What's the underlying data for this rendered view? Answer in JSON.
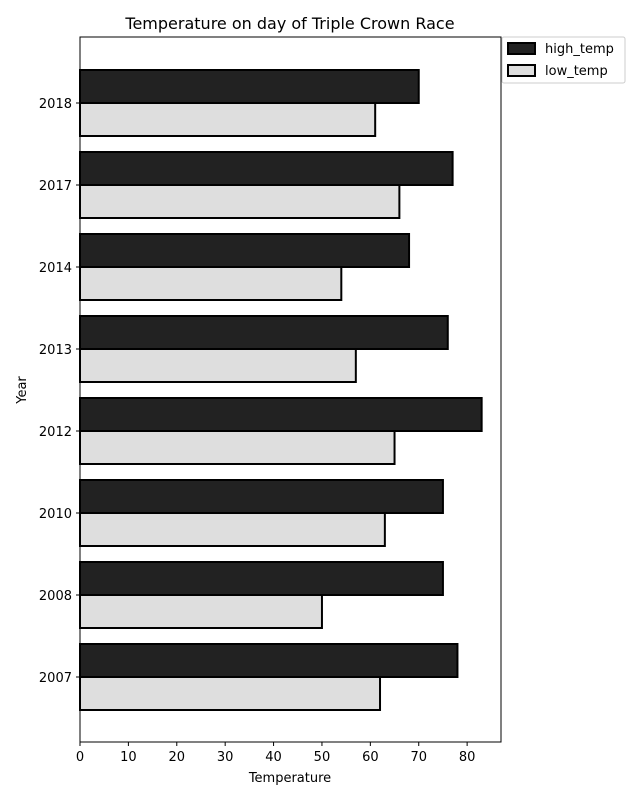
{
  "chart_data": {
    "type": "bar",
    "orientation": "horizontal",
    "title": "Temperature on day of Triple Crown Race",
    "xlabel": "Temperature",
    "ylabel": "Year",
    "categories": [
      "2007",
      "2008",
      "2010",
      "2012",
      "2013",
      "2014",
      "2017",
      "2018"
    ],
    "series": [
      {
        "name": "high_temp",
        "color": "#222222",
        "values": [
          78,
          75,
          75,
          83,
          76,
          68,
          77,
          70
        ]
      },
      {
        "name": "low_temp",
        "color": "#dedede",
        "values": [
          62,
          50,
          63,
          65,
          57,
          54,
          66,
          61
        ]
      }
    ],
    "xlim": [
      0,
      87
    ],
    "xticks": [
      0,
      10,
      20,
      30,
      40,
      50,
      60,
      70,
      80
    ],
    "grid": false,
    "legend_position": "outside top-right"
  }
}
